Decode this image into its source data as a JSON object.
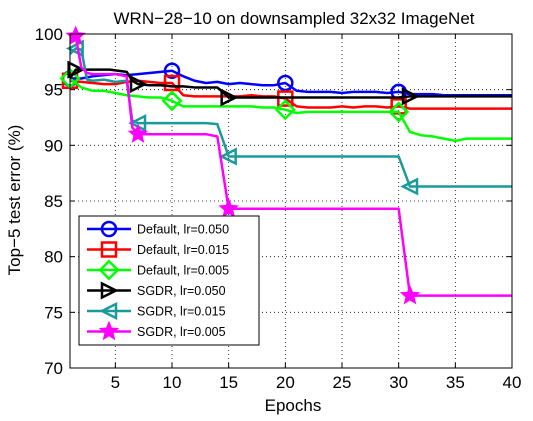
{
  "chart_data": {
    "type": "line",
    "title": "WRN−28−10 on downsampled 32x32 ImageNet",
    "xlabel": "Epochs",
    "ylabel": "Top−5 test error (%)",
    "xlim": [
      1,
      40
    ],
    "ylim": [
      70,
      100
    ],
    "x_ticks": [
      5,
      10,
      15,
      20,
      25,
      30,
      35,
      40
    ],
    "y_ticks": [
      70,
      75,
      80,
      85,
      90,
      95,
      100
    ],
    "grid": true,
    "legend_position": "bottom-left",
    "series": [
      {
        "name": "Default, lr=0.050",
        "color": "#0000ff",
        "marker": "circle",
        "x": [
          1,
          2,
          3,
          4,
          5,
          6,
          7,
          8,
          9,
          10,
          11,
          12,
          13,
          14,
          15,
          16,
          17,
          18,
          19,
          20,
          21,
          22,
          23,
          24,
          25,
          26,
          27,
          28,
          29,
          30,
          31,
          32,
          33,
          34,
          35,
          36,
          37,
          38,
          39,
          40
        ],
        "y": [
          96.0,
          96.0,
          96.2,
          96.3,
          96.4,
          96.3,
          96.4,
          96.5,
          96.6,
          96.7,
          96.2,
          95.8,
          95.6,
          95.7,
          95.5,
          95.6,
          95.5,
          95.4,
          95.4,
          95.6,
          94.9,
          94.8,
          94.8,
          94.8,
          94.7,
          94.8,
          94.8,
          94.8,
          94.7,
          94.8,
          94.6,
          94.6,
          94.6,
          94.5,
          94.5,
          94.5,
          94.5,
          94.5,
          94.5,
          94.5
        ],
        "marker_x": [
          1,
          10,
          20,
          30
        ]
      },
      {
        "name": "Default, lr=0.015",
        "color": "#ff0000",
        "marker": "square",
        "x": [
          1,
          2,
          3,
          4,
          5,
          6,
          7,
          8,
          9,
          10,
          11,
          12,
          13,
          14,
          15,
          16,
          17,
          18,
          19,
          20,
          21,
          22,
          23,
          24,
          25,
          26,
          27,
          28,
          29,
          30,
          31,
          32,
          33,
          34,
          35,
          36,
          37,
          38,
          39,
          40
        ],
        "y": [
          95.8,
          95.7,
          95.6,
          95.5,
          95.5,
          95.7,
          95.8,
          95.7,
          95.6,
          95.6,
          94.5,
          94.4,
          94.4,
          94.4,
          94.4,
          94.4,
          94.5,
          94.4,
          94.4,
          94.2,
          93.5,
          93.4,
          93.4,
          93.4,
          93.5,
          93.4,
          93.5,
          93.5,
          93.4,
          93.5,
          93.3,
          93.3,
          93.3,
          93.3,
          93.3,
          93.3,
          93.3,
          93.3,
          93.3,
          93.3
        ],
        "marker_x": [
          1,
          10,
          20,
          30
        ]
      },
      {
        "name": "Default, lr=0.005",
        "color": "#00ff00",
        "marker": "diamond",
        "x": [
          1,
          2,
          3,
          4,
          5,
          6,
          7,
          8,
          9,
          10,
          11,
          12,
          13,
          14,
          15,
          16,
          17,
          18,
          19,
          20,
          21,
          22,
          23,
          24,
          25,
          26,
          27,
          28,
          29,
          30,
          31,
          32,
          33,
          34,
          35,
          36,
          37,
          38,
          39,
          40
        ],
        "y": [
          96.0,
          95.2,
          94.9,
          94.9,
          94.7,
          94.5,
          94.4,
          94.3,
          94.3,
          94.0,
          93.5,
          93.5,
          93.5,
          93.5,
          93.5,
          93.5,
          93.5,
          93.4,
          93.4,
          93.2,
          92.9,
          93.0,
          93.0,
          93.0,
          93.0,
          93.0,
          93.0,
          93.0,
          93.0,
          93.0,
          91.2,
          90.9,
          90.8,
          90.6,
          90.4,
          90.6,
          90.6,
          90.6,
          90.6,
          90.6
        ],
        "marker_x": [
          1,
          10,
          20,
          30
        ]
      },
      {
        "name": "SGDR, lr=0.050",
        "color": "#000000",
        "marker": "triangle-right",
        "x": [
          1,
          1.5,
          3,
          4.5,
          6,
          6.5,
          7,
          8,
          9,
          10,
          11,
          12,
          13,
          14,
          15,
          16,
          17,
          18,
          19,
          20,
          21,
          22,
          23,
          24,
          25,
          26,
          27,
          28,
          29,
          30,
          31,
          32,
          33,
          34,
          35,
          36,
          37,
          38,
          39,
          40
        ],
        "y": [
          96.0,
          96.8,
          96.8,
          96.8,
          96.6,
          95.8,
          95.5,
          95.4,
          95.4,
          95.3,
          95.3,
          95.2,
          95.2,
          95.2,
          94.3,
          94.3,
          94.3,
          94.3,
          94.3,
          94.3,
          94.3,
          94.3,
          94.3,
          94.3,
          94.3,
          94.3,
          94.3,
          94.3,
          94.3,
          94.3,
          94.4,
          94.4,
          94.4,
          94.4,
          94.4,
          94.4,
          94.4,
          94.4,
          94.4,
          94.4
        ],
        "marker_x": [
          1.5,
          7,
          15,
          31
        ]
      },
      {
        "name": "SGDR, lr=0.015",
        "color": "#1a9a9a",
        "marker": "triangle-left",
        "x": [
          1,
          1.5,
          2,
          2.5,
          3,
          4,
          5,
          6,
          6.5,
          7,
          8,
          9,
          10,
          11,
          12,
          13,
          14,
          15,
          16,
          17,
          18,
          19,
          20,
          21,
          22,
          23,
          24,
          25,
          26,
          27,
          28,
          29,
          30,
          31,
          32,
          33,
          34,
          35,
          36,
          37,
          38,
          39,
          40
        ],
        "y": [
          98.2,
          98.7,
          98.6,
          95.9,
          95.8,
          95.9,
          95.7,
          95.8,
          92.2,
          92.0,
          92.0,
          92.0,
          92.0,
          92.0,
          92.0,
          92.0,
          91.9,
          89.0,
          89.0,
          89.0,
          89.0,
          89.0,
          89.0,
          89.0,
          89.0,
          89.0,
          89.0,
          89.0,
          89.0,
          89.0,
          89.0,
          89.0,
          89.0,
          86.3,
          86.3,
          86.3,
          86.3,
          86.3,
          86.3,
          86.3,
          86.3,
          86.3,
          86.3
        ],
        "marker_x": [
          1.5,
          7,
          15,
          31
        ]
      },
      {
        "name": "SGDR, lr=0.005",
        "color": "#ff00ff",
        "marker": "star",
        "x": [
          1,
          1.5,
          2,
          2.5,
          3,
          4,
          5,
          6,
          6.5,
          7,
          8,
          9,
          10,
          11,
          12,
          13,
          14,
          15,
          16,
          17,
          18,
          19,
          20,
          21,
          22,
          23,
          24,
          25,
          26,
          27,
          28,
          29,
          30,
          31,
          32,
          33,
          34,
          35,
          36,
          37,
          38,
          39,
          40
        ],
        "y": [
          99.6,
          99.8,
          97.0,
          96.5,
          96.4,
          96.4,
          96.4,
          96.2,
          91.6,
          91.0,
          91.0,
          91.0,
          91.0,
          91.0,
          91.0,
          91.0,
          90.8,
          84.3,
          84.3,
          84.3,
          84.3,
          84.3,
          84.3,
          84.3,
          84.3,
          84.3,
          84.3,
          84.3,
          84.3,
          84.3,
          84.3,
          84.3,
          84.3,
          76.5,
          76.5,
          76.5,
          76.5,
          76.5,
          76.5,
          76.5,
          76.5,
          76.5,
          76.5
        ],
        "marker_x": [
          1.5,
          7,
          15,
          31
        ]
      }
    ]
  }
}
